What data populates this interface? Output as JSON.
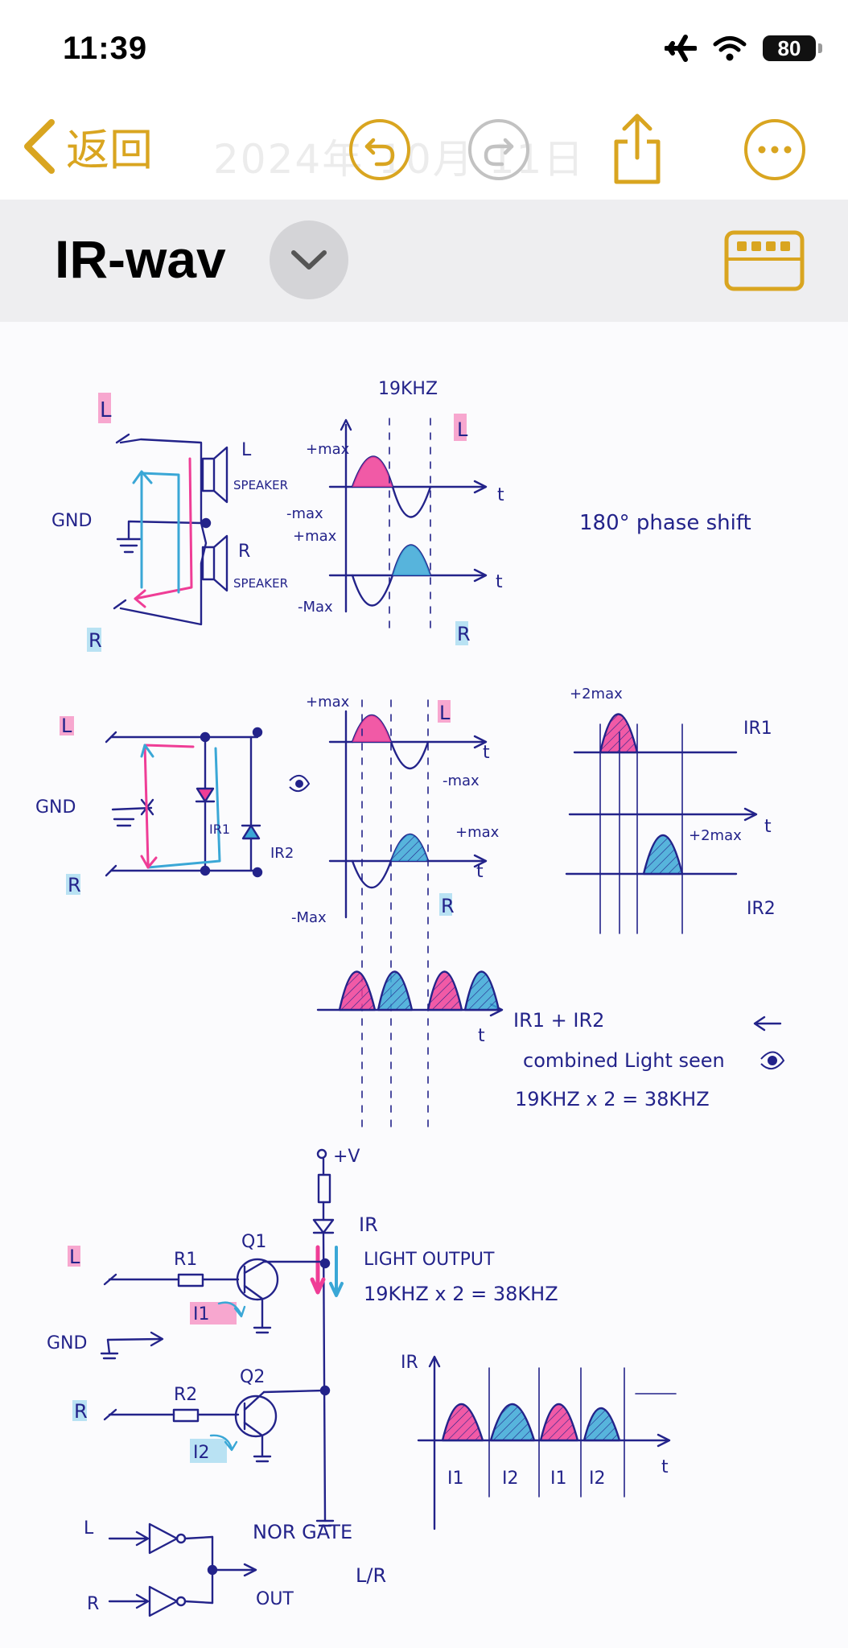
{
  "status": {
    "time": "11:39",
    "battery": "80"
  },
  "nav": {
    "back_label": "返回",
    "ghost_title": "2024年 10月 11日"
  },
  "title": {
    "text": "IR-wav"
  },
  "colors": {
    "accent": "#d9a520",
    "ink": "#23238a",
    "pink": "#ef3d96",
    "cyan": "#3aa7d6"
  },
  "icons": [
    "airplane-icon",
    "wifi-icon",
    "chevron-left-icon",
    "undo-icon",
    "redo-icon",
    "share-icon",
    "more-icon",
    "chevron-down-icon",
    "keyboard-icon",
    "eye-icon"
  ],
  "sketch": {
    "freq_top": "19KHZ",
    "lbl_L": "L",
    "lbl_R": "R",
    "gnd": "GND",
    "speaker": "SPEAKER",
    "plus_max": "+max",
    "minus_max": "-max",
    "minus_max_cap": "-Max",
    "t": "t",
    "phase_shift": "180° phase shift",
    "plus_2max": "+2max",
    "ir1": "IR1",
    "ir2": "IR2",
    "ir1_plus_ir2": "IR1 + IR2",
    "combined_light": "combined Light seen",
    "freq_double": "19KHZ x 2 = 38KHZ",
    "plus_v": "+V",
    "ir": "IR",
    "light_output": "LIGHT OUTPUT",
    "r1": "R1",
    "r2": "R2",
    "q1": "Q1",
    "q2": "Q2",
    "i1": "I1",
    "i2": "I2",
    "nor_gate": "NOR GATE",
    "lr": "L/R",
    "out": "OUT"
  }
}
